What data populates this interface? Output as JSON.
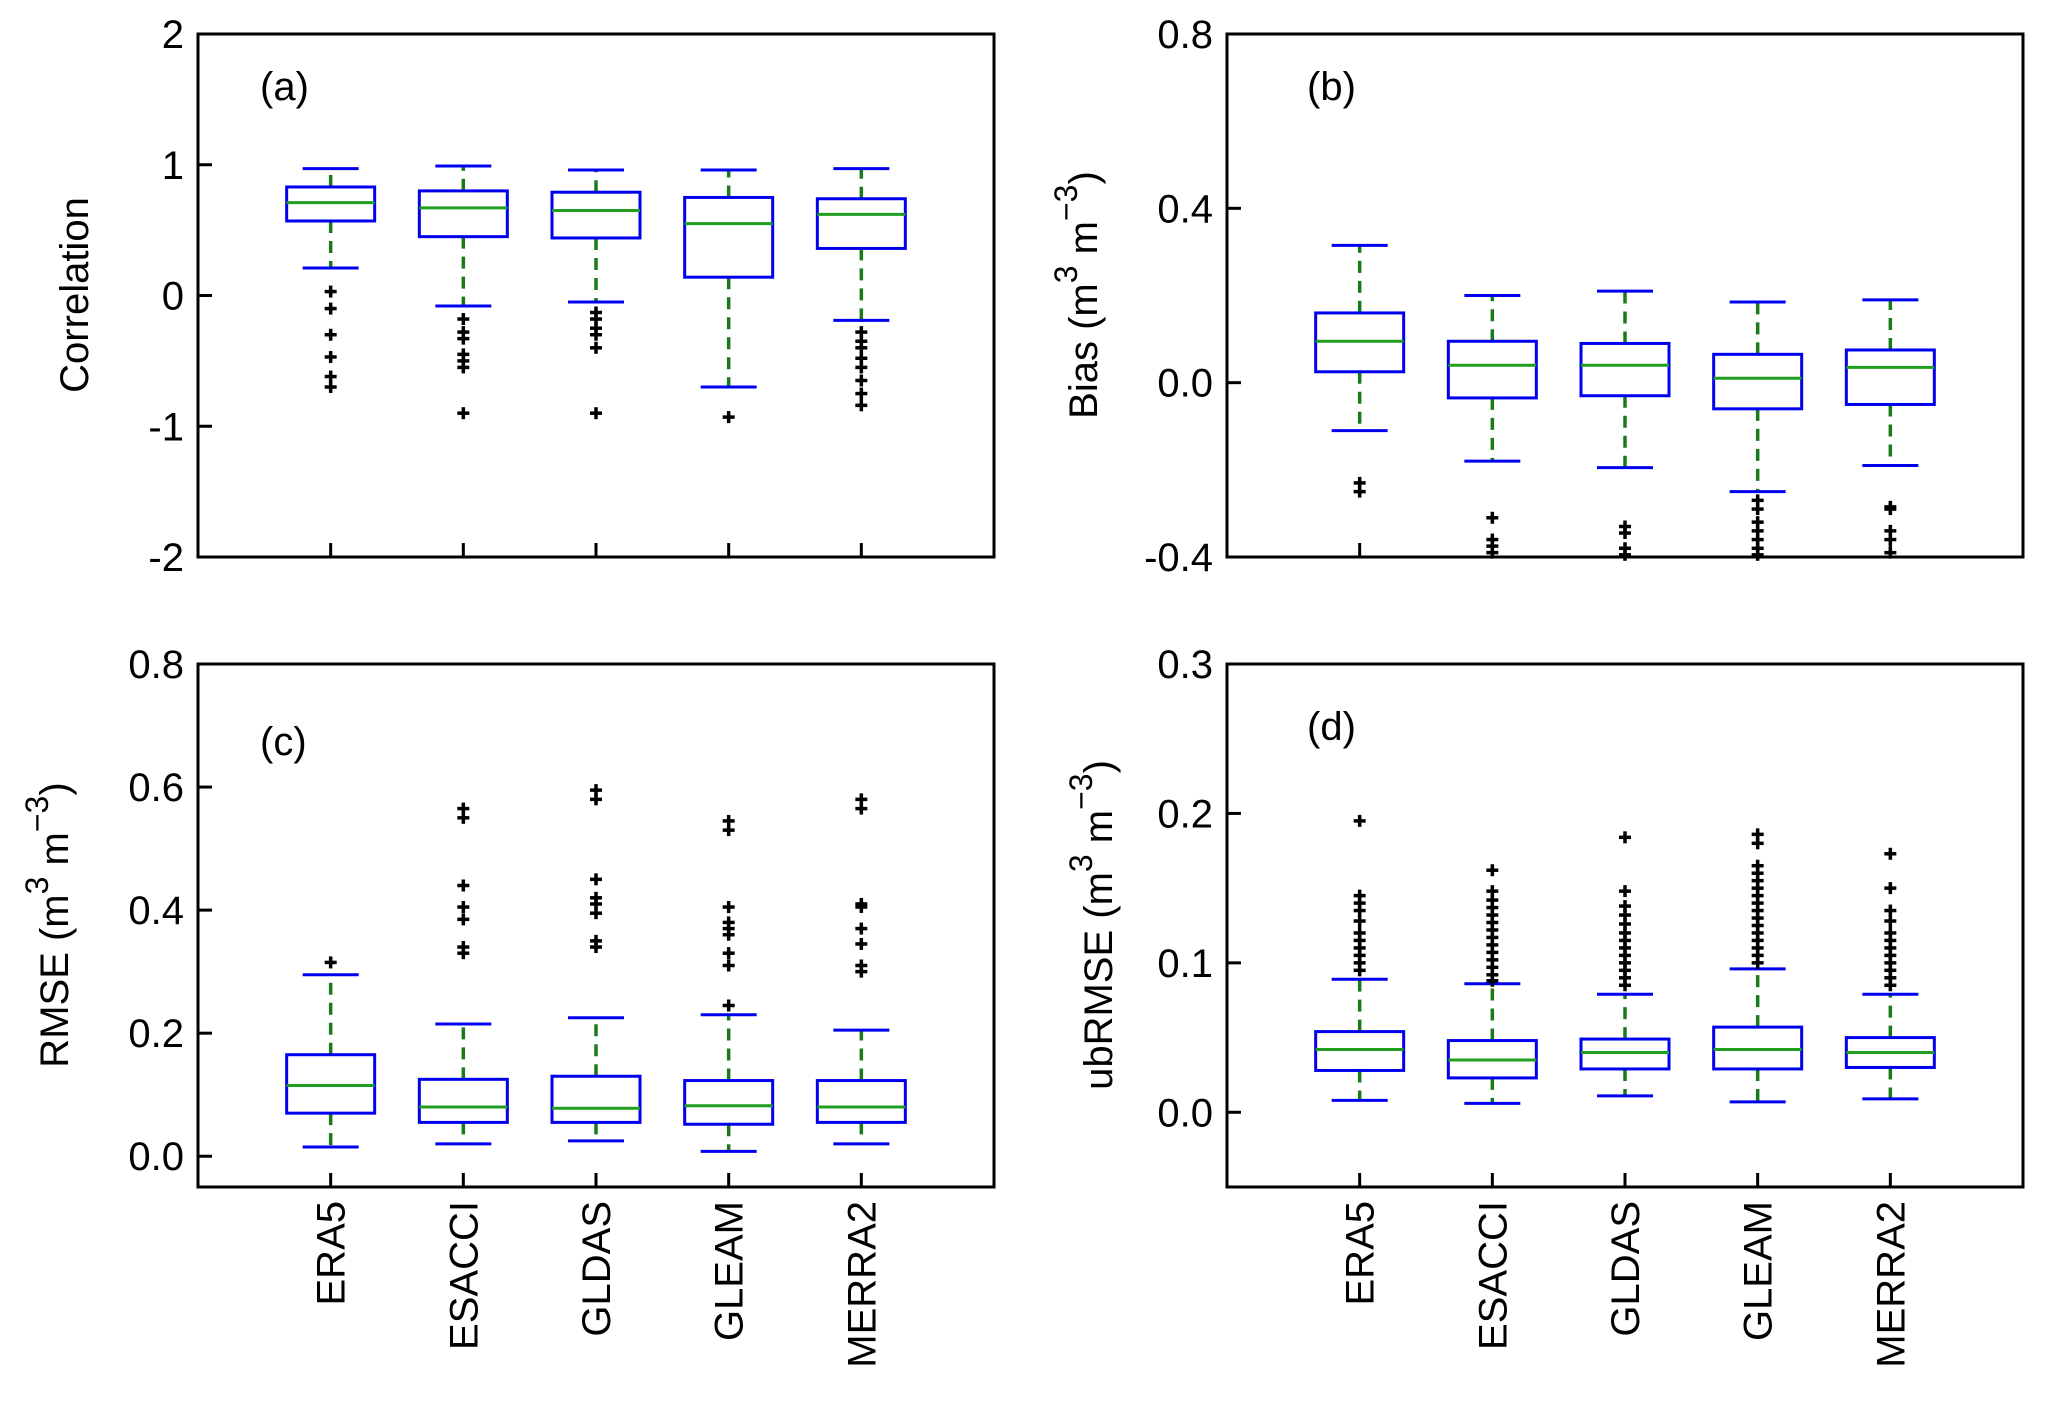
{
  "figure": {
    "categories": [
      "ERA5",
      "ESACCI",
      "GLDAS",
      "GLEAM",
      "MERRA2"
    ],
    "colors": {
      "box": "#0000ee",
      "median": "#1f9e1f",
      "whisker": "#1a7a1a",
      "outlier": "#000000",
      "frame": "#000000"
    }
  },
  "chart_data": [
    {
      "type": "boxplot",
      "panel_label": "(a)",
      "ylabel": "Correlation",
      "ylim": [
        -2,
        2
      ],
      "yticks": [
        -2,
        -1,
        0,
        1,
        2
      ],
      "ytick_labels": [
        "-2",
        "-1",
        "0",
        "1",
        "2"
      ],
      "categories": [
        "ERA5",
        "ESACCI",
        "GLDAS",
        "GLEAM",
        "MERRA2"
      ],
      "boxes": [
        {
          "whislo": 0.21,
          "q1": 0.57,
          "med": 0.71,
          "q3": 0.83,
          "whishi": 0.97,
          "outliers": [
            0.03,
            -0.1,
            -0.3,
            -0.47,
            -0.62,
            -0.7
          ]
        },
        {
          "whislo": -0.08,
          "q1": 0.45,
          "med": 0.67,
          "q3": 0.8,
          "whishi": 0.99,
          "outliers": [
            -0.18,
            -0.28,
            -0.33,
            -0.45,
            -0.5,
            -0.55,
            -0.9
          ]
        },
        {
          "whislo": -0.05,
          "q1": 0.44,
          "med": 0.65,
          "q3": 0.79,
          "whishi": 0.96,
          "outliers": [
            -0.13,
            -0.18,
            -0.25,
            -0.3,
            -0.4,
            -0.9
          ]
        },
        {
          "whislo": -0.7,
          "q1": 0.14,
          "med": 0.55,
          "q3": 0.75,
          "whishi": 0.96,
          "outliers": [
            -0.93
          ]
        },
        {
          "whislo": -0.19,
          "q1": 0.36,
          "med": 0.62,
          "q3": 0.74,
          "whishi": 0.97,
          "outliers": [
            -0.28,
            -0.35,
            -0.4,
            -0.48,
            -0.55,
            -0.65,
            -0.75,
            -0.84
          ]
        }
      ]
    },
    {
      "type": "boxplot",
      "panel_label": "(b)",
      "ylabel": "Bias (m",
      "ylabel_sup": "3",
      "ylabel_mid": " m",
      "ylabel_sup2": "−3",
      "ylabel_end": ")",
      "ylim": [
        -0.4,
        0.8
      ],
      "yticks": [
        -0.4,
        0.0,
        0.4,
        0.8
      ],
      "ytick_labels": [
        "-0.4",
        "0.0",
        "0.4",
        "0.8"
      ],
      "categories": [
        "ERA5",
        "ESACCI",
        "GLDAS",
        "GLEAM",
        "MERRA2"
      ],
      "boxes": [
        {
          "whislo": -0.11,
          "q1": 0.025,
          "med": 0.095,
          "q3": 0.16,
          "whishi": 0.315,
          "outliers": [
            -0.23,
            -0.25
          ]
        },
        {
          "whislo": -0.18,
          "q1": -0.035,
          "med": 0.04,
          "q3": 0.095,
          "whishi": 0.2,
          "outliers": [
            -0.31,
            -0.36,
            -0.375,
            -0.39
          ]
        },
        {
          "whislo": -0.195,
          "q1": -0.03,
          "med": 0.04,
          "q3": 0.09,
          "whishi": 0.21,
          "outliers": [
            -0.33,
            -0.345,
            -0.38,
            -0.395
          ]
        },
        {
          "whislo": -0.25,
          "q1": -0.06,
          "med": 0.01,
          "q3": 0.065,
          "whishi": 0.185,
          "outliers": [
            -0.27,
            -0.29,
            -0.32,
            -0.34,
            -0.36,
            -0.38,
            -0.395
          ]
        },
        {
          "whislo": -0.19,
          "q1": -0.05,
          "med": 0.035,
          "q3": 0.075,
          "whishi": 0.19,
          "outliers": [
            -0.285,
            -0.29,
            -0.34,
            -0.36,
            -0.39
          ]
        }
      ]
    },
    {
      "type": "boxplot",
      "panel_label": "(c)",
      "ylabel": "RMSE (m",
      "ylabel_sup": "3",
      "ylabel_mid": " m",
      "ylabel_sup2": "−3",
      "ylabel_end": ")",
      "ylim": [
        -0.05,
        0.8
      ],
      "yticks": [
        0.0,
        0.2,
        0.4,
        0.6,
        0.8
      ],
      "ytick_labels": [
        "0.0",
        "0.2",
        "0.4",
        "0.6",
        "0.8"
      ],
      "categories": [
        "ERA5",
        "ESACCI",
        "GLDAS",
        "GLEAM",
        "MERRA2"
      ],
      "boxes": [
        {
          "whislo": 0.015,
          "q1": 0.07,
          "med": 0.115,
          "q3": 0.165,
          "whishi": 0.295,
          "outliers": [
            0.315
          ]
        },
        {
          "whislo": 0.02,
          "q1": 0.055,
          "med": 0.08,
          "q3": 0.125,
          "whishi": 0.215,
          "outliers": [
            0.33,
            0.34,
            0.385,
            0.405,
            0.44,
            0.55,
            0.565
          ]
        },
        {
          "whislo": 0.025,
          "q1": 0.055,
          "med": 0.078,
          "q3": 0.13,
          "whishi": 0.225,
          "outliers": [
            0.34,
            0.35,
            0.395,
            0.41,
            0.42,
            0.45,
            0.58,
            0.595
          ]
        },
        {
          "whislo": 0.008,
          "q1": 0.052,
          "med": 0.082,
          "q3": 0.123,
          "whishi": 0.23,
          "outliers": [
            0.245,
            0.31,
            0.33,
            0.36,
            0.37,
            0.38,
            0.405,
            0.53,
            0.545
          ]
        },
        {
          "whislo": 0.02,
          "q1": 0.055,
          "med": 0.08,
          "q3": 0.123,
          "whishi": 0.205,
          "outliers": [
            0.3,
            0.31,
            0.345,
            0.37,
            0.405,
            0.41,
            0.565,
            0.58
          ]
        }
      ]
    },
    {
      "type": "boxplot",
      "panel_label": "(d)",
      "ylabel": "ubRMSE (m",
      "ylabel_sup": "3",
      "ylabel_mid": " m",
      "ylabel_sup2": "−3",
      "ylabel_end": ")",
      "ylim": [
        -0.05,
        0.3
      ],
      "yticks": [
        0.0,
        0.1,
        0.2,
        0.3
      ],
      "ytick_labels": [
        "0.0",
        "0.1",
        "0.2",
        "0.3"
      ],
      "categories": [
        "ERA5",
        "ESACCI",
        "GLDAS",
        "GLEAM",
        "MERRA2"
      ],
      "boxes": [
        {
          "whislo": 0.008,
          "q1": 0.028,
          "med": 0.042,
          "q3": 0.054,
          "whishi": 0.089,
          "outliers": [
            0.095,
            0.1,
            0.105,
            0.11,
            0.115,
            0.12,
            0.128,
            0.135,
            0.14,
            0.145,
            0.195
          ]
        },
        {
          "whislo": 0.006,
          "q1": 0.023,
          "med": 0.035,
          "q3": 0.048,
          "whishi": 0.086,
          "outliers": [
            0.088,
            0.092,
            0.097,
            0.102,
            0.107,
            0.112,
            0.117,
            0.122,
            0.127,
            0.132,
            0.137,
            0.142,
            0.148,
            0.162
          ]
        },
        {
          "whislo": 0.011,
          "q1": 0.029,
          "med": 0.04,
          "q3": 0.049,
          "whishi": 0.079,
          "outliers": [
            0.085,
            0.09,
            0.095,
            0.1,
            0.105,
            0.11,
            0.115,
            0.12,
            0.126,
            0.132,
            0.138,
            0.148,
            0.184
          ]
        },
        {
          "whislo": 0.007,
          "q1": 0.029,
          "med": 0.042,
          "q3": 0.057,
          "whishi": 0.096,
          "outliers": [
            0.1,
            0.105,
            0.11,
            0.115,
            0.12,
            0.125,
            0.13,
            0.135,
            0.14,
            0.145,
            0.15,
            0.155,
            0.16,
            0.165,
            0.18,
            0.186
          ]
        },
        {
          "whislo": 0.009,
          "q1": 0.03,
          "med": 0.04,
          "q3": 0.05,
          "whishi": 0.079,
          "outliers": [
            0.085,
            0.09,
            0.095,
            0.1,
            0.105,
            0.11,
            0.115,
            0.12,
            0.128,
            0.135,
            0.15,
            0.173
          ]
        }
      ]
    }
  ]
}
